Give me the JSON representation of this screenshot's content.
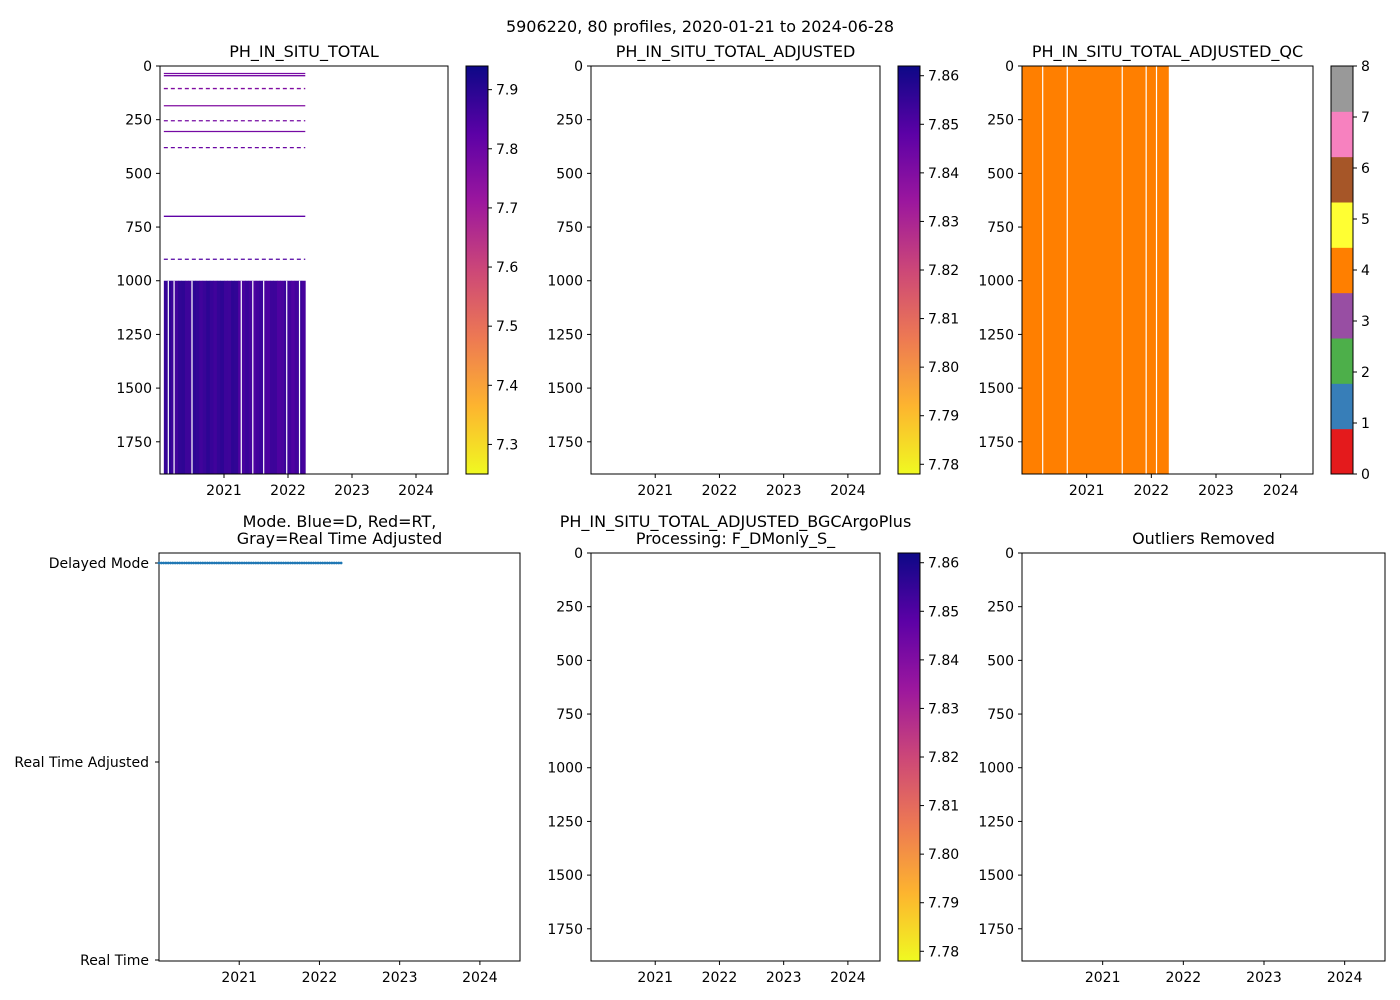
{
  "figure_title": "5906220, 80 profiles, 2020-01-21 to 2024-06-28",
  "palettes": {
    "plasma_r": [
      "#f0f921",
      "#fdb42f",
      "#ed7953",
      "#cc4778",
      "#9c179e",
      "#5c01a6",
      "#0d0887"
    ],
    "qc_colors": [
      "#e41a1c",
      "#377eb8",
      "#4daf4a",
      "#984ea3",
      "#ff7f00",
      "#ffff33",
      "#a65628",
      "#f781bf",
      "#999999"
    ],
    "mode_marker": "#1f77b4"
  },
  "chart_data": [
    {
      "id": "raw",
      "type": "heatmap",
      "title": "PH_IN_SITU_TOTAL",
      "x_ticks": [
        "2021",
        "2022",
        "2023",
        "2024"
      ],
      "x_range": [
        2020.0,
        2024.5
      ],
      "y_range": [
        0,
        1900
      ],
      "y_ticks": [
        0,
        250,
        500,
        750,
        1000,
        1250,
        1500,
        1750
      ],
      "colorbar": {
        "range": [
          7.25,
          7.94
        ],
        "ticks": [
          "7.3",
          "7.4",
          "7.5",
          "7.6",
          "7.7",
          "7.8",
          "7.9"
        ],
        "tick_values": [
          7.3,
          7.4,
          7.5,
          7.6,
          7.7,
          7.8,
          7.9
        ],
        "colormap": "plasma_r"
      },
      "data_extent_x": [
        2020.06,
        2022.27
      ],
      "deep_block": {
        "depth_range": [
          1000,
          1900
        ],
        "value": 7.88
      },
      "shallow_lines": [
        {
          "depth": 35,
          "value": 7.78
        },
        {
          "depth": 45,
          "value": 7.78
        },
        {
          "depth": 105,
          "value": 7.76
        },
        {
          "depth": 185,
          "value": 7.76
        },
        {
          "depth": 255,
          "value": 7.78
        },
        {
          "depth": 305,
          "value": 7.78
        },
        {
          "depth": 380,
          "value": 7.8
        },
        {
          "depth": 700,
          "value": 7.82
        },
        {
          "depth": 900,
          "value": 7.84
        }
      ],
      "gap_columns": [
        2020.13,
        2020.22,
        2020.5,
        2021.27,
        2021.45,
        2021.62,
        2021.98,
        2022.18
      ]
    },
    {
      "id": "adjusted",
      "type": "heatmap",
      "title": "PH_IN_SITU_TOTAL_ADJUSTED",
      "x_ticks": [
        "2021",
        "2022",
        "2023",
        "2024"
      ],
      "x_range": [
        2020.0,
        2024.5
      ],
      "y_range": [
        0,
        1900
      ],
      "y_ticks": [
        0,
        250,
        500,
        750,
        1000,
        1250,
        1500,
        1750
      ],
      "colorbar": {
        "range": [
          7.778,
          7.862
        ],
        "ticks": [
          "7.78",
          "7.79",
          "7.80",
          "7.81",
          "7.82",
          "7.83",
          "7.84",
          "7.85",
          "7.86"
        ],
        "tick_values": [
          7.78,
          7.79,
          7.8,
          7.81,
          7.82,
          7.83,
          7.84,
          7.85,
          7.86
        ],
        "colormap": "plasma_r"
      }
    },
    {
      "id": "qc",
      "type": "heatmap",
      "title": "PH_IN_SITU_TOTAL_ADJUSTED_QC",
      "x_ticks": [
        "2021",
        "2022",
        "2023",
        "2024"
      ],
      "x_range": [
        2020.0,
        2024.5
      ],
      "y_range": [
        0,
        1900
      ],
      "y_ticks": [
        0,
        250,
        500,
        750,
        1000,
        1250,
        1500,
        1750
      ],
      "qc_value": 4,
      "data_extent_x": [
        2020.0,
        2022.27
      ],
      "gap_columns": [
        2020.32,
        2020.7,
        2021.55,
        2021.92,
        2022.08
      ],
      "colorbar": {
        "range": [
          0,
          8
        ],
        "ticks": [
          "0",
          "1",
          "2",
          "3",
          "4",
          "5",
          "6",
          "7",
          "8"
        ],
        "tick_values": [
          0,
          1,
          2,
          3,
          4,
          5,
          6,
          7,
          8
        ],
        "colormap": "qc_colors"
      }
    },
    {
      "id": "mode",
      "type": "scatter",
      "title_lines": [
        "Mode. Blue=D, Red=RT,",
        "Gray=Real Time Adjusted"
      ],
      "x_ticks": [
        "2021",
        "2022",
        "2023",
        "2024"
      ],
      "x_range": [
        2020.0,
        2024.5
      ],
      "y_categories": [
        "Delayed Mode",
        "Real Time Adjusted",
        "Real Time"
      ],
      "delayed_points_x_range": [
        2020.0,
        2022.27
      ],
      "delayed_point_count": 80
    },
    {
      "id": "bgcargoplus",
      "type": "heatmap",
      "title_lines": [
        "PH_IN_SITU_TOTAL_ADJUSTED_BGCArgoPlus",
        "Processing: F_DMonly_S_"
      ],
      "x_ticks": [
        "2021",
        "2022",
        "2023",
        "2024"
      ],
      "x_range": [
        2020.0,
        2024.5
      ],
      "y_range": [
        0,
        1900
      ],
      "y_ticks": [
        0,
        250,
        500,
        750,
        1000,
        1250,
        1500,
        1750
      ],
      "colorbar": {
        "range": [
          7.778,
          7.862
        ],
        "ticks": [
          "7.78",
          "7.79",
          "7.80",
          "7.81",
          "7.82",
          "7.83",
          "7.84",
          "7.85",
          "7.86"
        ],
        "tick_values": [
          7.78,
          7.79,
          7.8,
          7.81,
          7.82,
          7.83,
          7.84,
          7.85,
          7.86
        ],
        "colormap": "plasma_r"
      }
    },
    {
      "id": "outliers",
      "type": "heatmap",
      "title": "Outliers Removed",
      "x_ticks": [
        "2021",
        "2022",
        "2023",
        "2024"
      ],
      "x_range": [
        2020.0,
        2024.5
      ],
      "y_range": [
        0,
        1900
      ],
      "y_ticks": [
        0,
        250,
        500,
        750,
        1000,
        1250,
        1500,
        1750
      ]
    }
  ]
}
